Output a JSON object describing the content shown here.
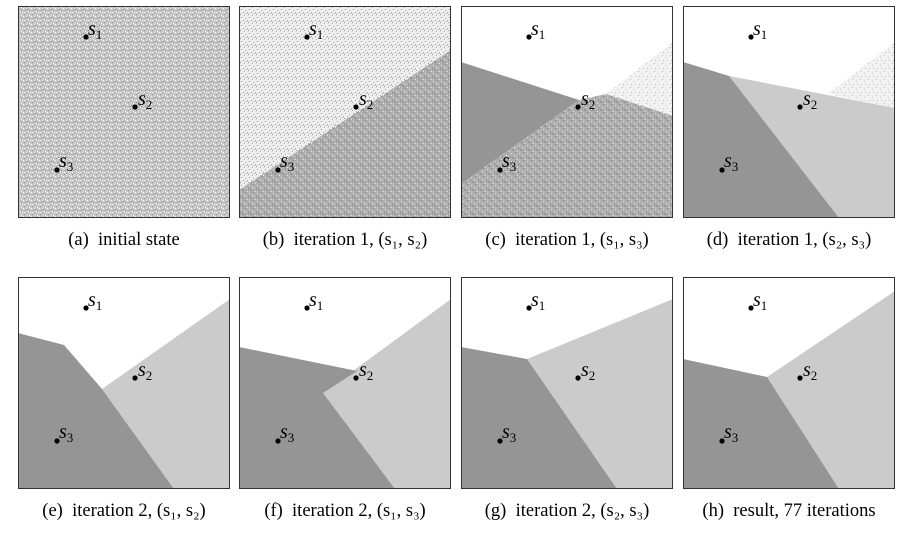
{
  "colors": {
    "region_s1": "#ffffff",
    "region_s2": "#cbcbcb",
    "region_s3": "#959595",
    "noise_light": "#ffffff",
    "noise_dark": "#8a8a8a",
    "border": "#333333",
    "site": "#000000"
  },
  "sites": [
    {
      "name": "s",
      "sub": "1"
    },
    {
      "name": "s",
      "sub": "2"
    },
    {
      "name": "s",
      "sub": "3"
    }
  ],
  "panels": [
    {
      "letter": "(a)",
      "caption": "initial state"
    },
    {
      "letter": "(b)",
      "caption": "iteration 1, (s₁, s₂)"
    },
    {
      "letter": "(c)",
      "caption": "iteration 1, (s₁, s₃)"
    },
    {
      "letter": "(d)",
      "caption": "iteration 1, (s₂, s₃)"
    },
    {
      "letter": "(e)",
      "caption": "iteration 2, (s₁, s₂)"
    },
    {
      "letter": "(f)",
      "caption": "iteration 2, (s₁, s₃)"
    },
    {
      "letter": "(g)",
      "caption": "iteration 2, (s₂, s₃)"
    },
    {
      "letter": "(h)",
      "caption": "result, 77 iterations"
    }
  ]
}
